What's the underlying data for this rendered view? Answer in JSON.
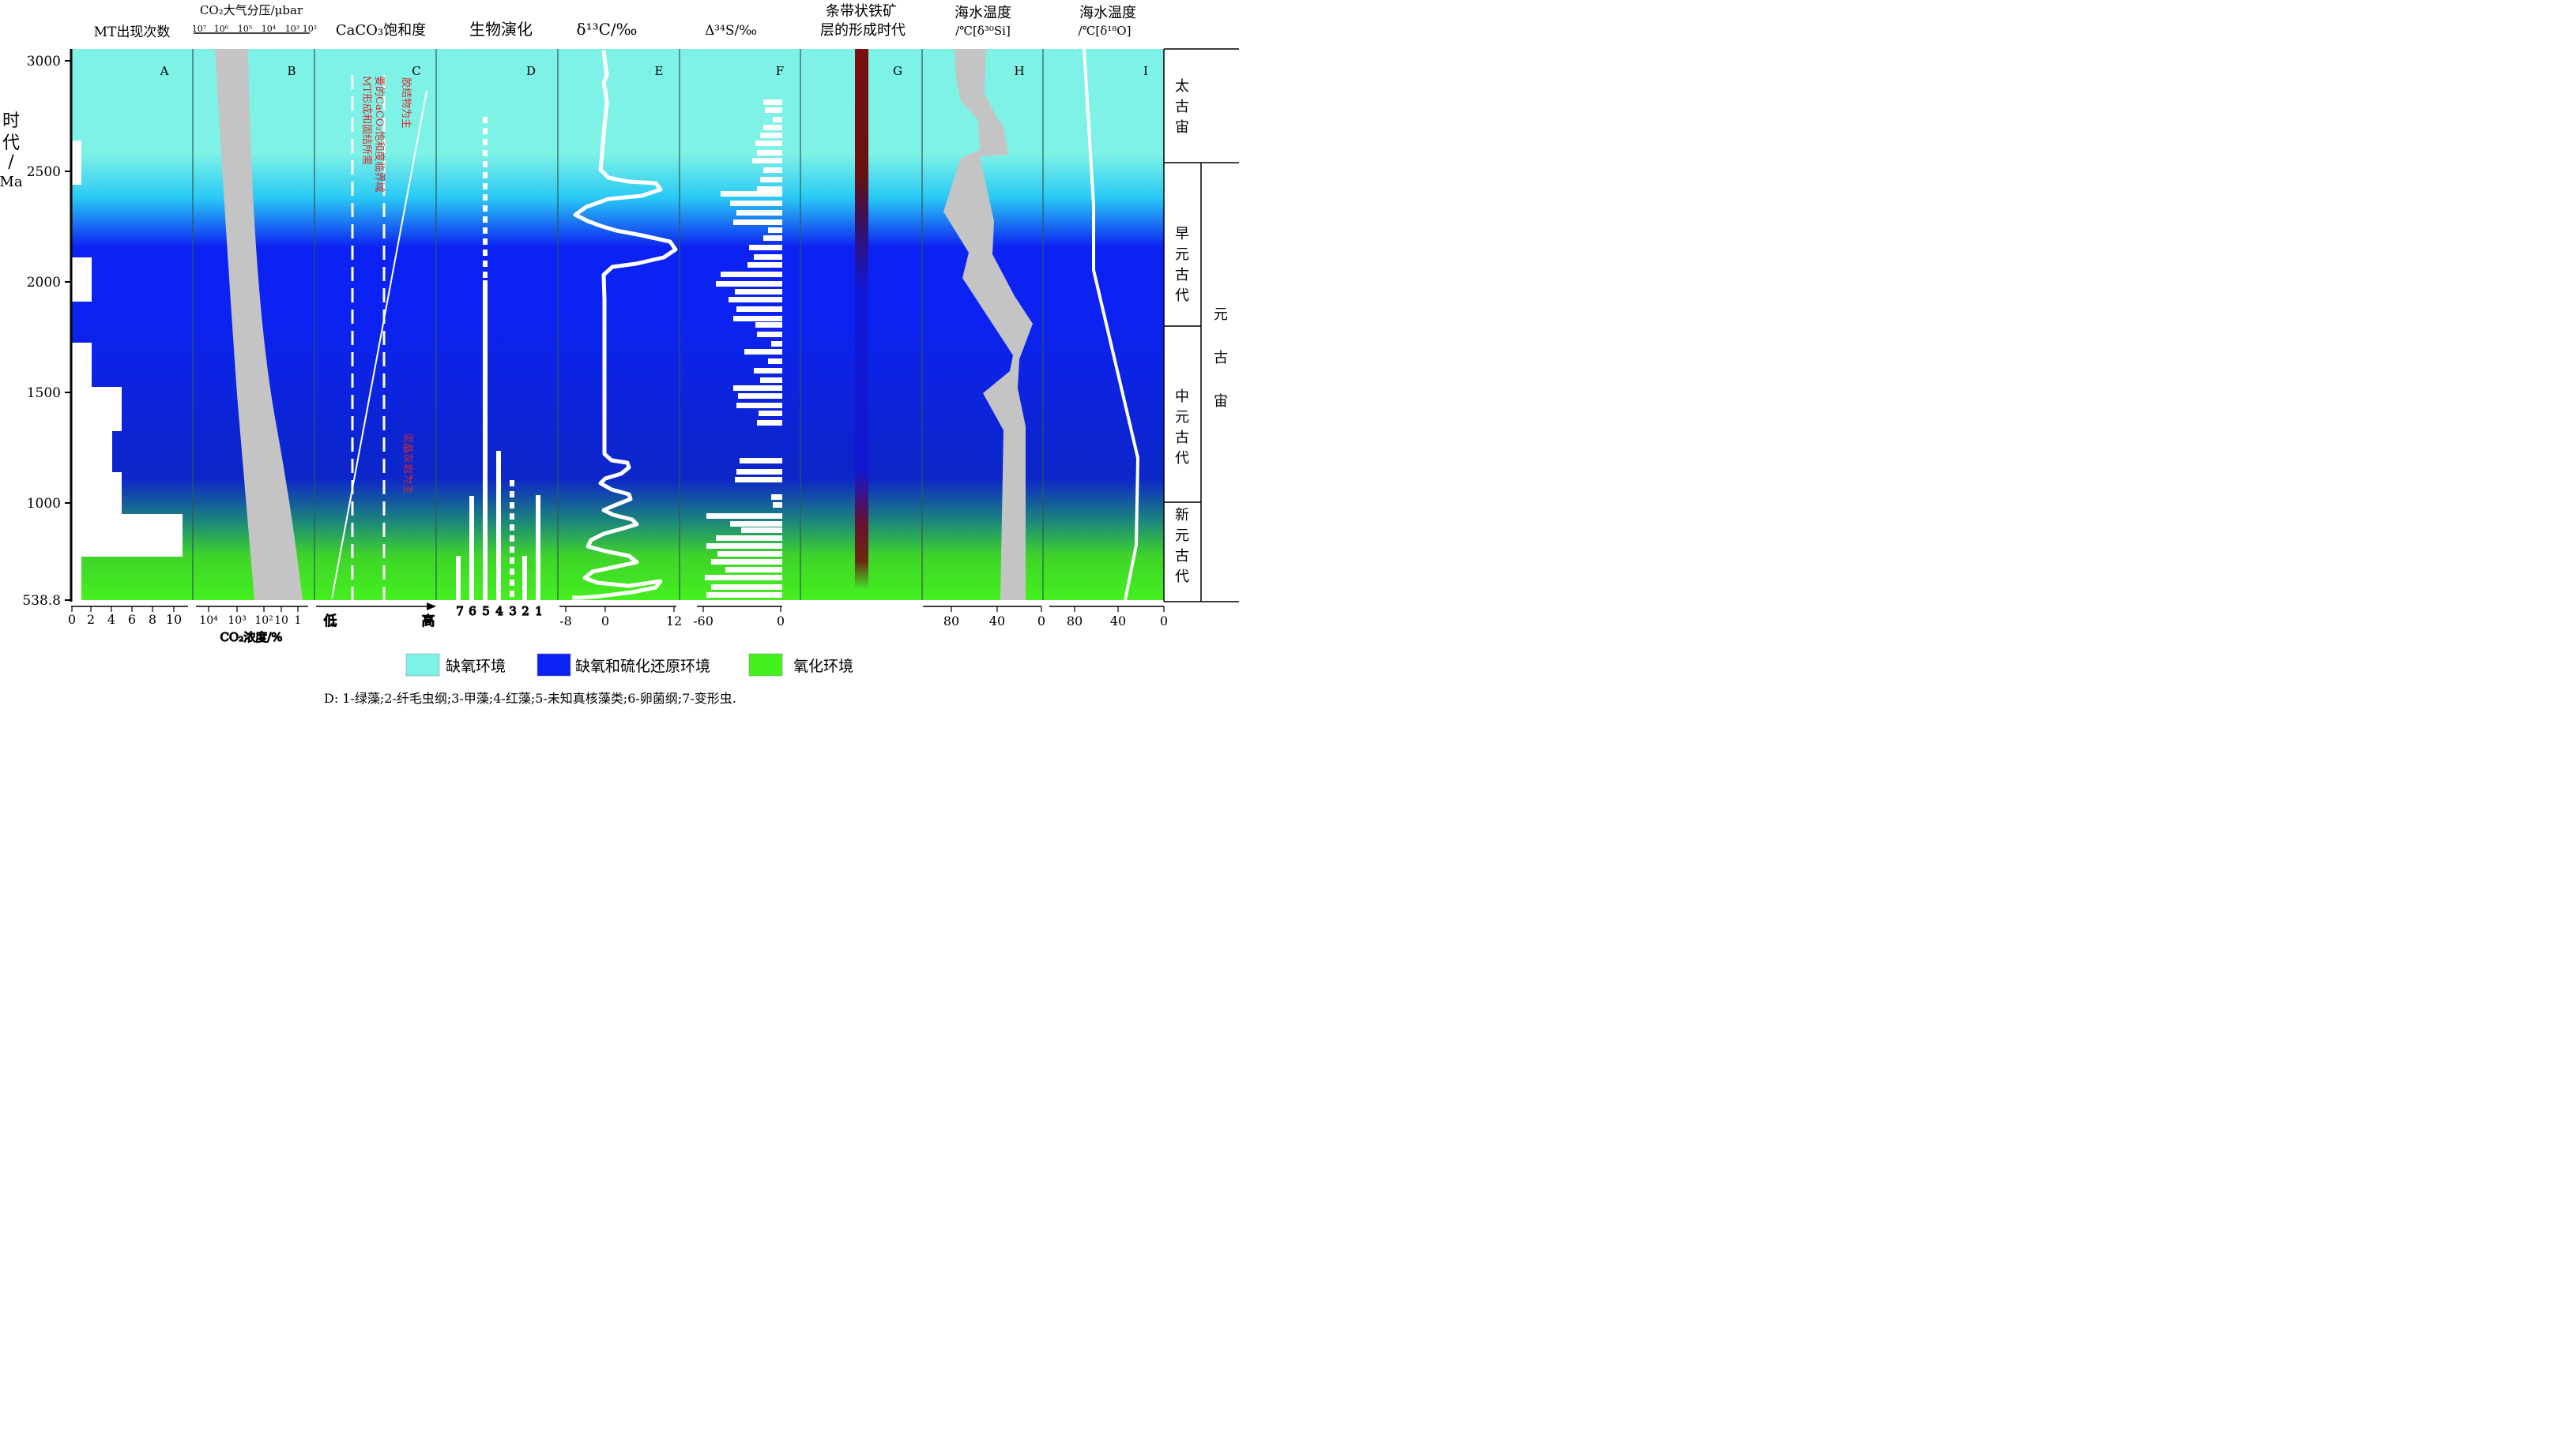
{
  "header_titles": {
    "A": "MT出现次数",
    "B": "CO₂大气分压/μbar",
    "C": "CaCO₃饱和度",
    "D": "生物演化",
    "E": "δ¹³C/‰",
    "F": "Δ³⁴S/‰",
    "G1": "条带状铁矿",
    "G2": "层的形成时代",
    "H1": "海水温度",
    "H2": "/℃[δ³⁰Si]",
    "I1": "海水温度",
    "I2": "/℃[δ¹⁸O]"
  },
  "panel_letters": [
    "A",
    "B",
    "C",
    "D",
    "E",
    "F",
    "G",
    "H",
    "I"
  ],
  "age_axis": {
    "title_chars": [
      "时",
      "代",
      "/",
      "Ma"
    ],
    "ticks": [
      {
        "value": 3000,
        "label": "3000"
      },
      {
        "value": 2500,
        "label": "2500"
      },
      {
        "value": 2000,
        "label": "2000"
      },
      {
        "value": 1500,
        "label": "1500"
      },
      {
        "value": 1000,
        "label": "1000"
      },
      {
        "value": 538.8,
        "label": "538.8"
      }
    ]
  },
  "eras": [
    {
      "label": "太古宙",
      "from": 3000,
      "to": 2500
    },
    {
      "label": "早元古代",
      "from": 2500,
      "to": 1750
    },
    {
      "label": "中元古代",
      "from": 1750,
      "to": 1000
    },
    {
      "label": "新元古代",
      "from": 1000,
      "to": 538.8
    }
  ],
  "eon": {
    "label": "元古宙",
    "from": 2500,
    "to": 538.8
  },
  "environment_colors": {
    "anoxic": "#7ef2e6",
    "anoxic_sulfidic": "#0c22f2",
    "oxic": "#44f01e"
  },
  "bottom_axes": {
    "A": {
      "ticks": [
        "0",
        "2",
        "4",
        "6",
        "8",
        "10"
      ]
    },
    "B": {
      "top_ticks": [
        "10⁷",
        "10⁶",
        "10⁵",
        "10⁴",
        "10³",
        "10²"
      ],
      "bottom_ticks": [
        "10⁴",
        "10³",
        "10²",
        "10",
        "1"
      ],
      "title": "CO₂浓度/%"
    },
    "C": {
      "low": "低",
      "high": "高"
    },
    "D": {
      "ticks": [
        "7",
        "6",
        "5",
        "4",
        "3",
        "2",
        "1"
      ]
    },
    "E": {
      "ticks": [
        "-8",
        "0",
        "12"
      ]
    },
    "F": {
      "ticks": [
        "-60",
        "0"
      ]
    },
    "H": {
      "ticks": [
        "80",
        "40",
        "0"
      ]
    },
    "I": {
      "ticks": [
        "80",
        "40",
        "0"
      ]
    }
  },
  "annotations_C": {
    "line1": "MT形成和固结所需",
    "line2": "要的CaCO₃饱和度临界域",
    "cement": "胶结物为主",
    "micrite": "泥晶灰岩为主"
  },
  "legend": {
    "items": [
      {
        "label": "缺氧环境",
        "color": "#7ef2e6"
      },
      {
        "label": "缺氧和硫化还原环境",
        "color": "#0c22f2"
      },
      {
        "label": "氧化环境",
        "color": "#44f01e"
      }
    ],
    "note": "D: 1-绿藻;2-纤毛虫纲;3-甲藻;4-红藻;5-未知真核藻类;6-卵菌纲;7-变形虫."
  }
}
